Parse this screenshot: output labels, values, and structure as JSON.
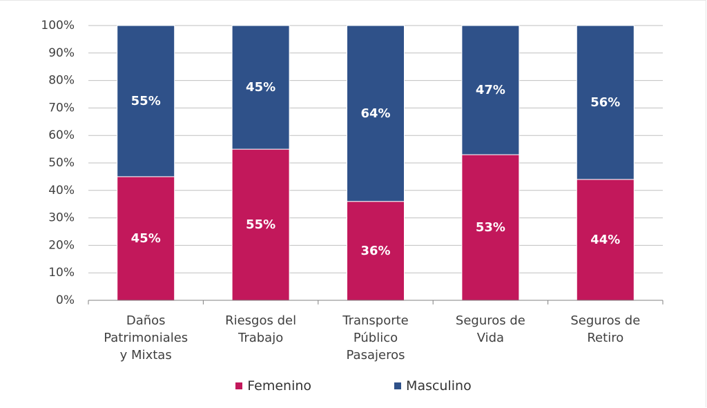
{
  "chart_data": {
    "type": "bar",
    "stacked": true,
    "categories": [
      [
        "Daños",
        "Patrimoniales",
        "y Mixtas"
      ],
      [
        "Riesgos del",
        "Trabajo"
      ],
      [
        "Transporte",
        "Público",
        "Pasajeros"
      ],
      [
        "Seguros de",
        "Vida"
      ],
      [
        "Seguros de",
        "Retiro"
      ]
    ],
    "series": [
      {
        "name": "Femenino",
        "color": "#c2185b",
        "values": [
          45,
          55,
          36,
          53,
          44
        ],
        "labels": [
          "45%",
          "55%",
          "36%",
          "53%",
          "44%"
        ]
      },
      {
        "name": "Masculino",
        "color": "#2f5189",
        "values": [
          55,
          45,
          64,
          47,
          56
        ],
        "labels": [
          "55%",
          "45%",
          "64%",
          "47%",
          "56%"
        ]
      }
    ],
    "ylim": [
      0,
      100
    ],
    "yticks": [
      "0%",
      "10%",
      "20%",
      "30%",
      "40%",
      "50%",
      "60%",
      "70%",
      "80%",
      "90%",
      "100%"
    ],
    "grid": true,
    "legend_position": "bottom",
    "title": "",
    "xlabel": "",
    "ylabel": ""
  },
  "legend": [
    {
      "label": "Femenino",
      "color": "#c2185b"
    },
    {
      "label": "Masculino",
      "color": "#2f5189"
    }
  ]
}
